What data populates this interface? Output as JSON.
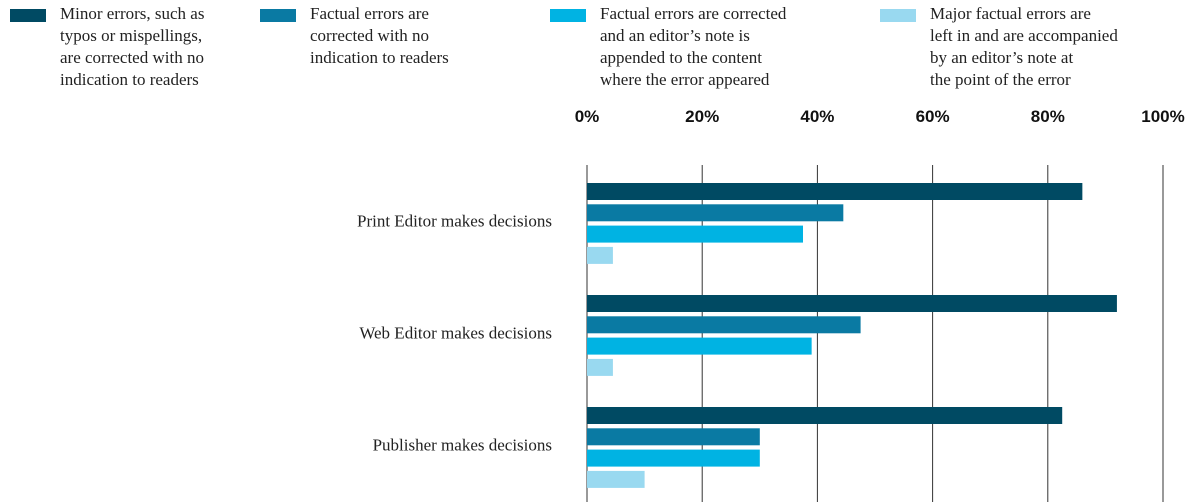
{
  "chart_data": {
    "type": "hbar",
    "categories": [
      "Print Editor makes decisions",
      "Web Editor makes decisions",
      "Publisher makes decisions"
    ],
    "series": [
      {
        "name": "Minor errors, such as\ntypos or mispellings,\nare corrected with no\nindication to readers",
        "color": "#004a63",
        "values": [
          86,
          92,
          82.5
        ]
      },
      {
        "name": "Factual errors are\ncorrected with no\nindication to readers",
        "color": "#0a7aa3",
        "values": [
          44.5,
          47.5,
          30
        ]
      },
      {
        "name": "Factual errors are corrected\nand an editor’s note is\nappended to the content\nwhere the error appeared",
        "color": "#00b3e3",
        "values": [
          37.5,
          39,
          30
        ]
      },
      {
        "name": "Major factual errors are\nleft in and are accompanied\nby an editor’s note at\nthe point of the error",
        "color": "#99d9f0",
        "values": [
          4.5,
          4.5,
          10
        ]
      }
    ],
    "xlim": [
      0,
      100
    ],
    "xticks": [
      {
        "value": 0,
        "label": "0%"
      },
      {
        "value": 20,
        "label": "20%"
      },
      {
        "value": 40,
        "label": "40%"
      },
      {
        "value": 60,
        "label": "60%"
      },
      {
        "value": 80,
        "label": "80%"
      },
      {
        "value": 100,
        "label": "100%"
      }
    ],
    "grid": true
  }
}
